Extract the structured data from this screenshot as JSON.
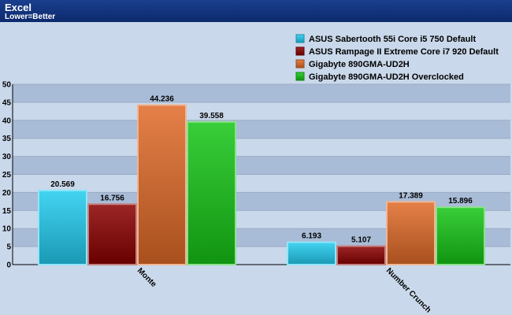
{
  "title": "Excel",
  "subtitle": "Lower=Better",
  "chart_data": {
    "type": "bar",
    "categories": [
      "Monte",
      "Number Crunch"
    ],
    "series": [
      {
        "name": "ASUS Sabertooth 55i Core i5 750 Default",
        "values": [
          20.569,
          6.193
        ],
        "color": "#22ccf0"
      },
      {
        "name": "ASUS Rampage II Extreme Core i7 920 Default",
        "values": [
          16.756,
          5.107
        ],
        "color": "#8b0000"
      },
      {
        "name": "Gigabyte 890GMA-UD2H",
        "values": [
          44.236,
          17.389
        ],
        "color": "#e06a28"
      },
      {
        "name": "Gigabyte 890GMA-UD2H Overclocked",
        "values": [
          39.558,
          15.896
        ],
        "color": "#16c516"
      }
    ],
    "ylim": [
      0,
      50
    ],
    "yticks": [
      0,
      5,
      10,
      15,
      20,
      25,
      30,
      35,
      40,
      45,
      50
    ],
    "grid": true,
    "legend": "top-right"
  }
}
